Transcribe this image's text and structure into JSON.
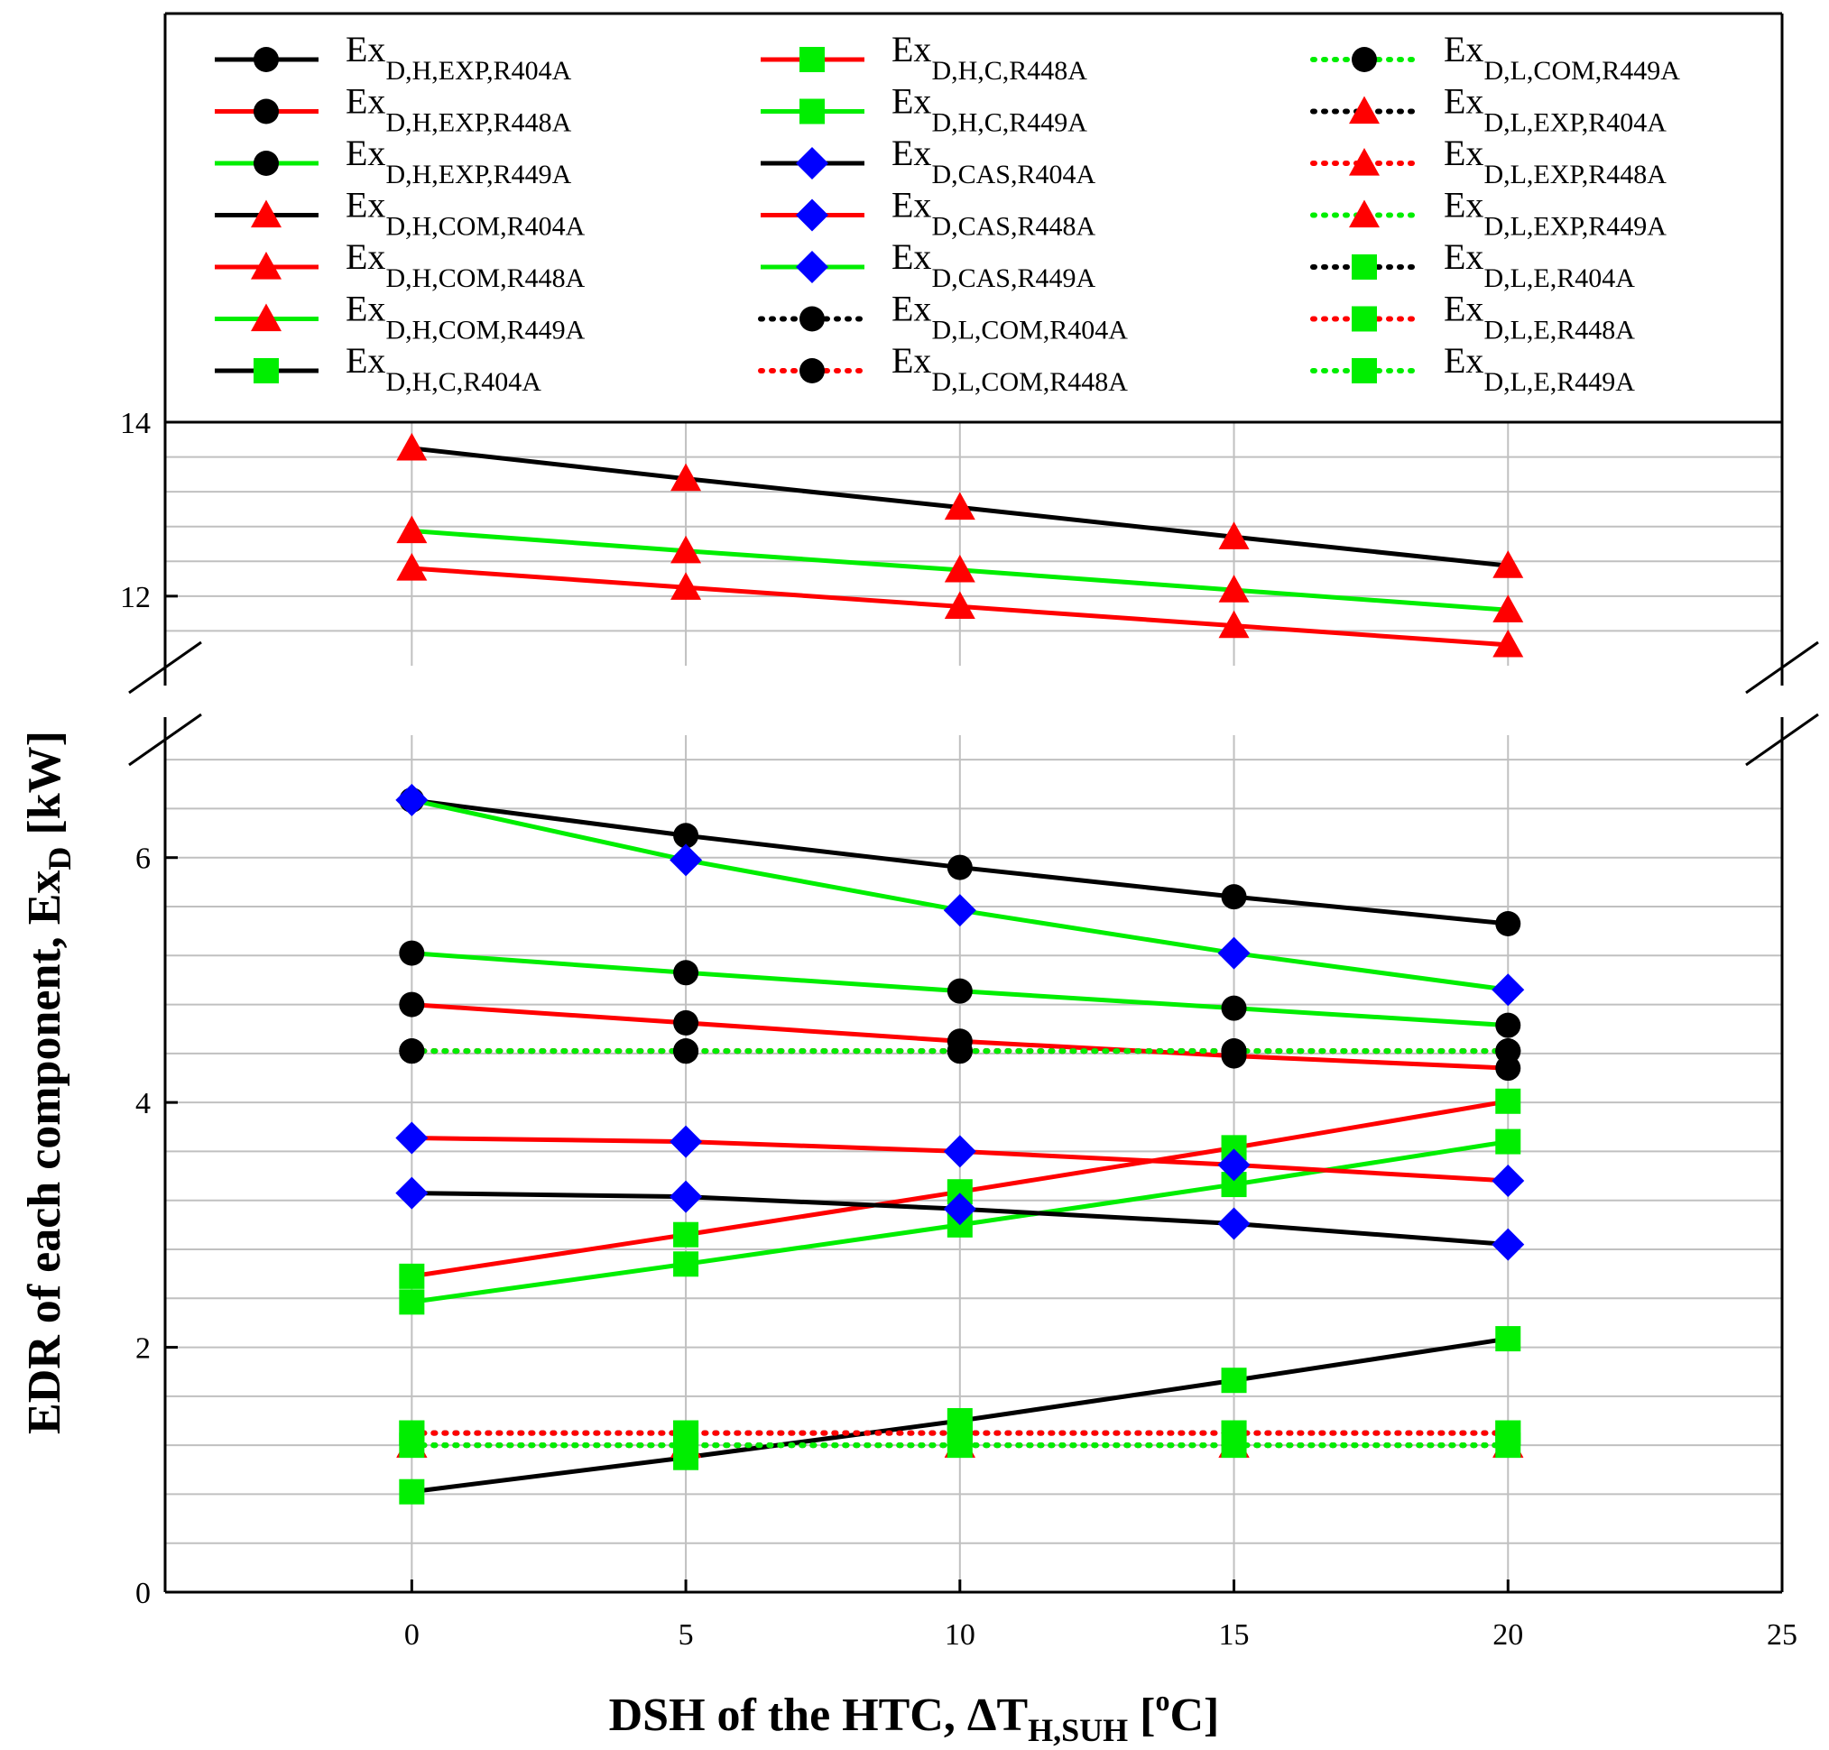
{
  "chart_data": {
    "type": "line",
    "xlabel": {
      "main": "DSH of the HTC, ΔT",
      "sub": "H,SUH",
      "tail_open": " [",
      "sup": "o",
      "tail_close": "C]"
    },
    "ylabel": {
      "main": "EDR of each component, Ex",
      "sub": "D",
      "tail": " [kW]"
    },
    "xlim": [
      -4.5,
      25
    ],
    "x_ticks": [
      0,
      5,
      10,
      15,
      20,
      25
    ],
    "y_lower": {
      "range": [
        0,
        7
      ],
      "ticks": [
        0,
        2,
        4,
        6
      ],
      "minor_step": 0.4
    },
    "y_upper": {
      "range": [
        11.2,
        14
      ],
      "ticks": [
        12,
        14
      ],
      "minor_step": 0.4
    },
    "axis_break": true,
    "grid": true,
    "legend_placement": "top, inside frame, 3 columns",
    "x": [
      0,
      5,
      10,
      15,
      20
    ],
    "series": [
      {
        "name": "Ex",
        "sub": "D,H,EXP,R404A",
        "color": "#000000",
        "marker": "circle",
        "line": "solid",
        "values": [
          6.47,
          6.18,
          5.92,
          5.68,
          5.46
        ]
      },
      {
        "name": "Ex",
        "sub": "D,H,EXP,R448A",
        "color": "#ff0000",
        "marker": "circle",
        "line": "solid",
        "values": [
          4.8,
          4.65,
          4.5,
          4.38,
          4.28
        ]
      },
      {
        "name": "Ex",
        "sub": "D,H,EXP,R449A",
        "color": "#00ee00",
        "marker": "circle",
        "line": "solid",
        "values": [
          5.22,
          5.06,
          4.91,
          4.77,
          4.63
        ]
      },
      {
        "name": "Ex",
        "sub": "D,H,COM,R404A",
        "color": "#000000",
        "marker": "triangle",
        "line": "solid",
        "values": [
          13.7,
          13.35,
          13.02,
          12.68,
          12.35
        ]
      },
      {
        "name": "Ex",
        "sub": "D,H,COM,R448A",
        "color": "#ff0000",
        "marker": "triangle",
        "line": "solid",
        "values": [
          12.32,
          12.1,
          11.88,
          11.66,
          11.44
        ]
      },
      {
        "name": "Ex",
        "sub": "D,H,COM,R449A",
        "color": "#00ee00",
        "marker": "triangle",
        "line": "solid",
        "values": [
          12.75,
          12.52,
          12.3,
          12.07,
          11.84
        ]
      },
      {
        "name": "Ex",
        "sub": "D,H,C,R404A",
        "color": "#000000",
        "marker": "square",
        "line": "solid",
        "values": [
          0.82,
          1.1,
          1.4,
          1.73,
          2.07
        ]
      },
      {
        "name": "Ex",
        "sub": "D,H,C,R448A",
        "color": "#ff0000",
        "marker": "square",
        "line": "solid",
        "values": [
          2.58,
          2.92,
          3.27,
          3.63,
          4.01
        ]
      },
      {
        "name": "Ex",
        "sub": "D,H,C,R449A",
        "color": "#00ee00",
        "marker": "square",
        "line": "solid",
        "values": [
          2.37,
          2.68,
          3.0,
          3.33,
          3.68
        ]
      },
      {
        "name": "Ex",
        "sub": "D,CAS,R404A",
        "color": "#000000",
        "marker": "diamond",
        "line": "solid",
        "values": [
          3.26,
          3.23,
          3.13,
          3.01,
          2.84
        ]
      },
      {
        "name": "Ex",
        "sub": "D,CAS,R448A",
        "color": "#ff0000",
        "marker": "diamond",
        "line": "solid",
        "values": [
          3.71,
          3.68,
          3.6,
          3.49,
          3.36
        ]
      },
      {
        "name": "Ex",
        "sub": "D,CAS,R449A",
        "color": "#00ee00",
        "marker": "diamond",
        "line": "solid",
        "values": [
          6.47,
          5.98,
          5.57,
          5.22,
          4.92
        ]
      },
      {
        "name": "Ex",
        "sub": "D,L,COM,R404A",
        "color": "#000000",
        "marker": "circle",
        "line": "dotted",
        "values": [
          4.42,
          4.42,
          4.42,
          4.42,
          4.42
        ]
      },
      {
        "name": "Ex",
        "sub": "D,L,COM,R448A",
        "color": "#ff0000",
        "marker": "circle",
        "line": "dotted",
        "values": [
          4.42,
          4.42,
          4.42,
          4.42,
          4.42
        ]
      },
      {
        "name": "Ex",
        "sub": "D,L,COM,R449A",
        "color": "#00ee00",
        "marker": "circle",
        "line": "dotted",
        "values": [
          4.42,
          4.42,
          4.42,
          4.42,
          4.42
        ]
      },
      {
        "name": "Ex",
        "sub": "D,L,EXP,R404A",
        "color": "#000000",
        "marker": "triangle",
        "line": "dotted",
        "values": [
          1.2,
          1.2,
          1.2,
          1.2,
          1.2
        ]
      },
      {
        "name": "Ex",
        "sub": "D,L,EXP,R448A",
        "color": "#ff0000",
        "marker": "triangle",
        "line": "dotted",
        "values": [
          1.2,
          1.2,
          1.2,
          1.2,
          1.2
        ]
      },
      {
        "name": "Ex",
        "sub": "D,L,EXP,R449A",
        "color": "#00ee00",
        "marker": "triangle",
        "line": "dotted",
        "values": [
          1.2,
          1.2,
          1.2,
          1.2,
          1.2
        ]
      },
      {
        "name": "Ex",
        "sub": "D,L,E,R404A",
        "color": "#000000",
        "marker": "square",
        "line": "dotted",
        "values": [
          1.3,
          1.3,
          1.3,
          1.3,
          1.3
        ]
      },
      {
        "name": "Ex",
        "sub": "D,L,E,R448A",
        "color": "#ff0000",
        "marker": "square",
        "line": "dotted",
        "values": [
          1.3,
          1.3,
          1.3,
          1.3,
          1.3
        ]
      },
      {
        "name": "Ex",
        "sub": "D,L,E,R449A",
        "color": "#00ee00",
        "marker": "square",
        "line": "dotted",
        "values": [
          1.2,
          1.2,
          1.2,
          1.2,
          1.2
        ]
      }
    ]
  }
}
